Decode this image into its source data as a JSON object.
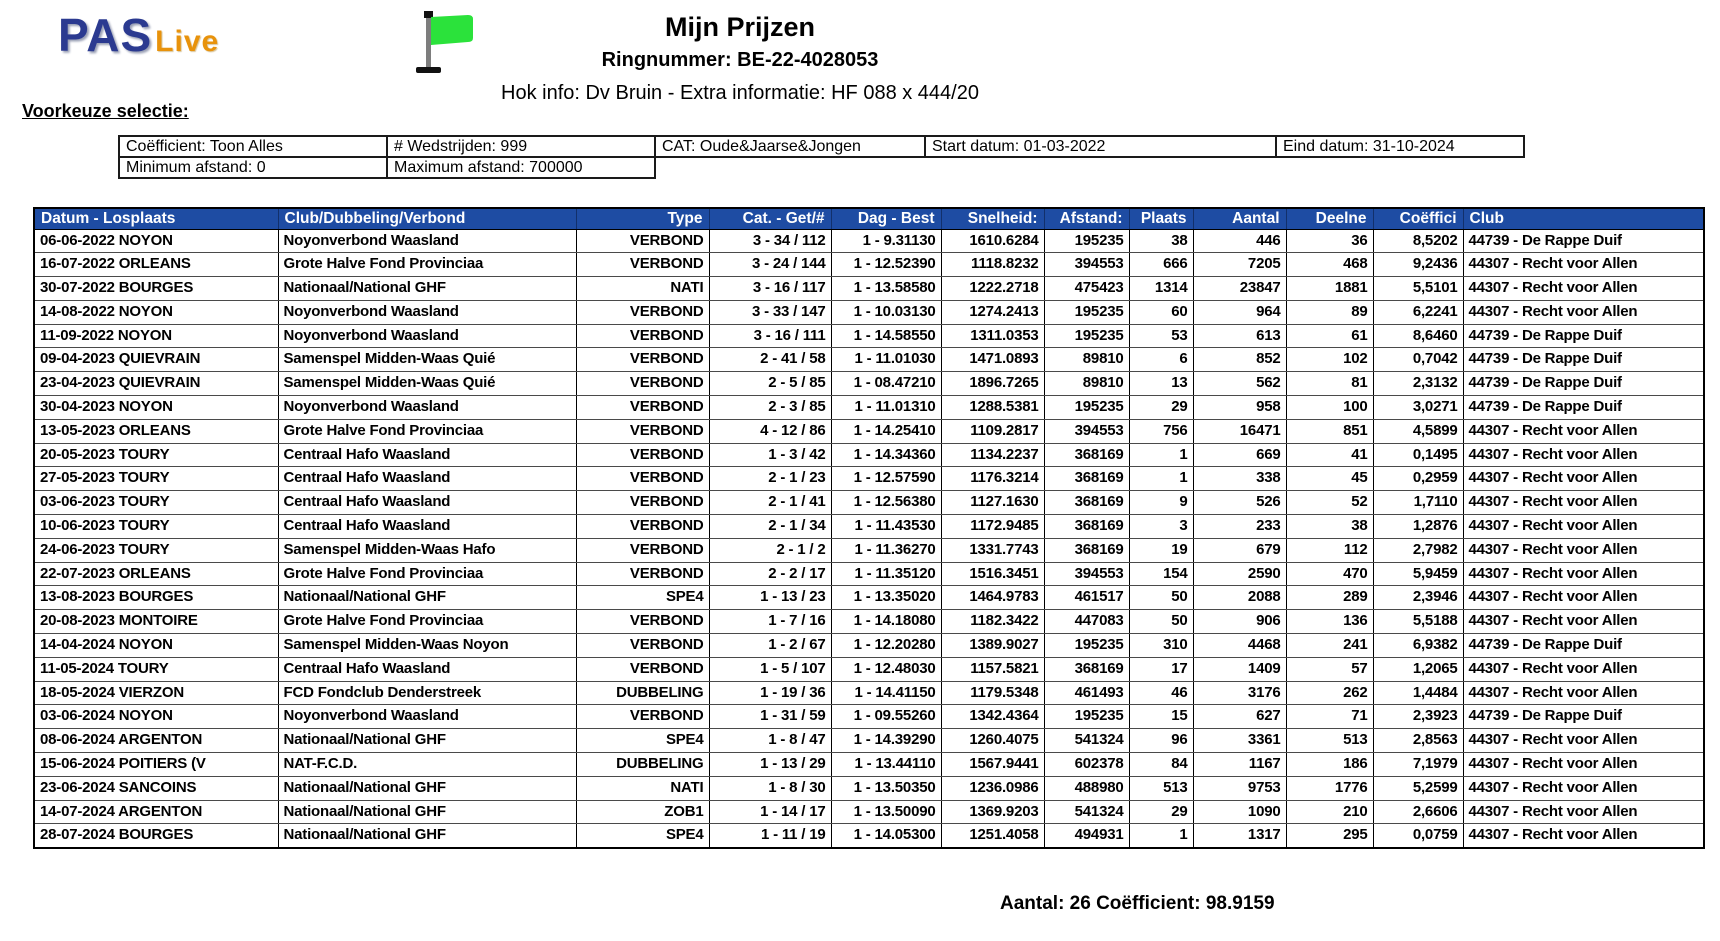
{
  "logo": {
    "pas": "PAS",
    "live": "Live"
  },
  "header": {
    "title": "Mijn Prijzen",
    "ringnummer": "Ringnummer: BE-22-4028053",
    "hok_info": "Hok info: Dv Bruin - Extra informatie: HF 088 x 444/20"
  },
  "voorkeuze": {
    "label": "Voorkeuze selectie:",
    "filters_row1": [
      "Coëfficient: Toon Alles",
      "# Wedstrijden: 999",
      "CAT: Oude&Jaarse&Jongen",
      "Start datum: 01-03-2022",
      "Eind datum: 31-10-2024"
    ],
    "filters_row2": [
      "Minimum afstand: 0",
      "Maximum afstand: 700000"
    ]
  },
  "table": {
    "columns": [
      "Datum - Losplaats",
      "Club/Dubbeling/Verbond",
      "Type",
      "Cat. - Get/#",
      "Dag - Best",
      "Snelheid:",
      "Afstand:",
      "Plaats",
      "Aantal",
      "Deelne",
      "Coëffici",
      "Club"
    ],
    "rows": [
      [
        "06-06-2022 NOYON",
        "Noyonverbond Waasland",
        "VERBOND",
        "3 - 34 / 112",
        "1 - 9.31130",
        "1610.6284",
        "195235",
        "38",
        "446",
        "36",
        "8,5202",
        "44739 - De Rappe Duif"
      ],
      [
        "16-07-2022 ORLEANS",
        "Grote Halve Fond Provinciaa",
        "VERBOND",
        "3 - 24 / 144",
        "1 - 12.52390",
        "1118.8232",
        "394553",
        "666",
        "7205",
        "468",
        "9,2436",
        "44307 - Recht voor Allen"
      ],
      [
        "30-07-2022 BOURGES",
        "Nationaal/National GHF",
        "NATI",
        "3 - 16 / 117",
        "1 - 13.58580",
        "1222.2718",
        "475423",
        "1314",
        "23847",
        "1881",
        "5,5101",
        "44307 - Recht voor Allen"
      ],
      [
        "14-08-2022 NOYON",
        "Noyonverbond Waasland",
        "VERBOND",
        "3 - 33 / 147",
        "1 - 10.03130",
        "1274.2413",
        "195235",
        "60",
        "964",
        "89",
        "6,2241",
        "44307 - Recht voor Allen"
      ],
      [
        "11-09-2022 NOYON",
        "Noyonverbond Waasland",
        "VERBOND",
        "3 - 16 / 111",
        "1 - 14.58550",
        "1311.0353",
        "195235",
        "53",
        "613",
        "61",
        "8,6460",
        "44739 - De Rappe Duif"
      ],
      [
        "09-04-2023 QUIEVRAIN",
        "Samenspel Midden-Waas Quié",
        "VERBOND",
        "2 - 41 / 58",
        "1 - 11.01030",
        "1471.0893",
        "89810",
        "6",
        "852",
        "102",
        "0,7042",
        "44739 - De Rappe Duif"
      ],
      [
        "23-04-2023 QUIEVRAIN",
        "Samenspel Midden-Waas Quié",
        "VERBOND",
        "2 - 5 / 85",
        "1 - 08.47210",
        "1896.7265",
        "89810",
        "13",
        "562",
        "81",
        "2,3132",
        "44739 - De Rappe Duif"
      ],
      [
        "30-04-2023 NOYON",
        "Noyonverbond Waasland",
        "VERBOND",
        "2 - 3 / 85",
        "1 - 11.01310",
        "1288.5381",
        "195235",
        "29",
        "958",
        "100",
        "3,0271",
        "44739 - De Rappe Duif"
      ],
      [
        "13-05-2023 ORLEANS",
        "Grote Halve Fond Provinciaa",
        "VERBOND",
        "4 - 12 / 86",
        "1 - 14.25410",
        "1109.2817",
        "394553",
        "756",
        "16471",
        "851",
        "4,5899",
        "44307 - Recht voor Allen"
      ],
      [
        "20-05-2023 TOURY",
        "Centraal Hafo Waasland",
        "VERBOND",
        "1 - 3 / 42",
        "1 - 14.34360",
        "1134.2237",
        "368169",
        "1",
        "669",
        "41",
        "0,1495",
        "44307 - Recht voor Allen"
      ],
      [
        "27-05-2023 TOURY",
        "Centraal Hafo Waasland",
        "VERBOND",
        "2 - 1 / 23",
        "1 - 12.57590",
        "1176.3214",
        "368169",
        "1",
        "338",
        "45",
        "0,2959",
        "44307 - Recht voor Allen"
      ],
      [
        "03-06-2023 TOURY",
        "Centraal Hafo Waasland",
        "VERBOND",
        "2 - 1 / 41",
        "1 - 12.56380",
        "1127.1630",
        "368169",
        "9",
        "526",
        "52",
        "1,7110",
        "44307 - Recht voor Allen"
      ],
      [
        "10-06-2023 TOURY",
        "Centraal Hafo Waasland",
        "VERBOND",
        "2 - 1 / 34",
        "1 - 11.43530",
        "1172.9485",
        "368169",
        "3",
        "233",
        "38",
        "1,2876",
        "44307 - Recht voor Allen"
      ],
      [
        "24-06-2023 TOURY",
        "Samenspel Midden-Waas Hafo",
        "VERBOND",
        "2 - 1 / 2",
        "1 - 11.36270",
        "1331.7743",
        "368169",
        "19",
        "679",
        "112",
        "2,7982",
        "44307 - Recht voor Allen"
      ],
      [
        "22-07-2023 ORLEANS",
        "Grote Halve Fond Provinciaa",
        "VERBOND",
        "2 - 2 / 17",
        "1 - 11.35120",
        "1516.3451",
        "394553",
        "154",
        "2590",
        "470",
        "5,9459",
        "44307 - Recht voor Allen"
      ],
      [
        "13-08-2023 BOURGES",
        "Nationaal/National GHF",
        "SPE4",
        "1 - 13 / 23",
        "1 - 13.35020",
        "1464.9783",
        "461517",
        "50",
        "2088",
        "289",
        "2,3946",
        "44307 - Recht voor Allen"
      ],
      [
        "20-08-2023 MONTOIRE",
        "Grote Halve Fond Provinciaa",
        "VERBOND",
        "1 - 7 / 16",
        "1 - 14.18080",
        "1182.3422",
        "447083",
        "50",
        "906",
        "136",
        "5,5188",
        "44307 - Recht voor Allen"
      ],
      [
        "14-04-2024 NOYON",
        "Samenspel Midden-Waas Noyon",
        "VERBOND",
        "1 - 2 / 67",
        "1 - 12.20280",
        "1389.9027",
        "195235",
        "310",
        "4468",
        "241",
        "6,9382",
        "44739 - De Rappe Duif"
      ],
      [
        "11-05-2024 TOURY",
        "Centraal Hafo Waasland",
        "VERBOND",
        "1 - 5 / 107",
        "1 - 12.48030",
        "1157.5821",
        "368169",
        "17",
        "1409",
        "57",
        "1,2065",
        "44307 - Recht voor Allen"
      ],
      [
        "18-05-2024 VIERZON",
        "FCD Fondclub Denderstreek",
        "DUBBELING",
        "1 - 19 / 36",
        "1 - 14.41150",
        "1179.5348",
        "461493",
        "46",
        "3176",
        "262",
        "1,4484",
        "44307 - Recht voor Allen"
      ],
      [
        "03-06-2024 NOYON",
        "Noyonverbond Waasland",
        "VERBOND",
        "1 - 31 / 59",
        "1 - 09.55260",
        "1342.4364",
        "195235",
        "15",
        "627",
        "71",
        "2,3923",
        "44739 - De Rappe Duif"
      ],
      [
        "08-06-2024 ARGENTON",
        "Nationaal/National GHF",
        "SPE4",
        "1 - 8 / 47",
        "1 - 14.39290",
        "1260.4075",
        "541324",
        "96",
        "3361",
        "513",
        "2,8563",
        "44307 - Recht voor Allen"
      ],
      [
        "15-06-2024 POITIERS (V",
        "NAT-F.C.D.",
        "DUBBELING",
        "1 - 13 / 29",
        "1 - 13.44110",
        "1567.9441",
        "602378",
        "84",
        "1167",
        "186",
        "7,1979",
        "44307 - Recht voor Allen"
      ],
      [
        "23-06-2024 SANCOINS",
        "Nationaal/National GHF",
        "NATI",
        "1 - 8 / 30",
        "1 - 13.50350",
        "1236.0986",
        "488980",
        "513",
        "9753",
        "1776",
        "5,2599",
        "44307 - Recht voor Allen"
      ],
      [
        "14-07-2024 ARGENTON",
        "Nationaal/National GHF",
        "ZOB1",
        "1 - 14 / 17",
        "1 - 13.50090",
        "1369.9203",
        "541324",
        "29",
        "1090",
        "210",
        "2,6606",
        "44307 - Recht voor Allen"
      ],
      [
        "28-07-2024 BOURGES",
        "Nationaal/National GHF",
        "SPE4",
        "1 - 11 / 19",
        "1 - 14.05300",
        "1251.4058",
        "494931",
        "1",
        "1317",
        "295",
        "0,0759",
        "44307 - Recht voor Allen"
      ]
    ]
  },
  "footer": {
    "summary": "Aantal: 26 Coëfficient: 98.9159"
  },
  "colors": {
    "table_header_bg": "#1e4ca3",
    "logo_blue": "#2b3a90",
    "logo_orange": "#e8920b",
    "flag_green": "#2be23b"
  }
}
